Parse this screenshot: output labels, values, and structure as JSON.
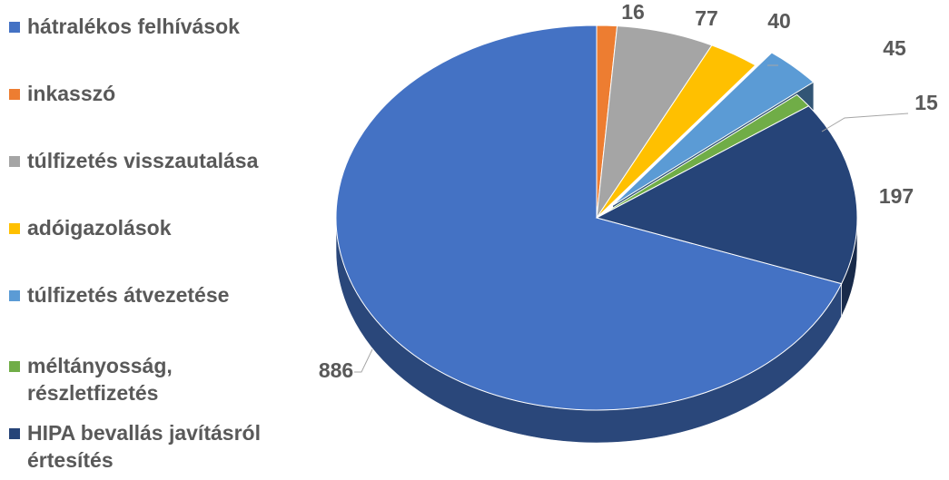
{
  "chart_data": {
    "type": "pie",
    "categories": [
      "hátralékos felhívások",
      "inkasszó",
      "túlfizetés visszautalása",
      "adóigazolások",
      "túlfizetés átvezetése",
      "méltányosság, részletfizetés",
      "HIPA bevallás javításról értesítés"
    ],
    "values": [
      886,
      16,
      77,
      40,
      45,
      15,
      197
    ],
    "colors": [
      "#4472c4",
      "#ed7d31",
      "#a5a5a5",
      "#ffc000",
      "#5b9bd5",
      "#70ad47",
      "#264478"
    ],
    "exploded": [
      4
    ],
    "legend": "left"
  }
}
